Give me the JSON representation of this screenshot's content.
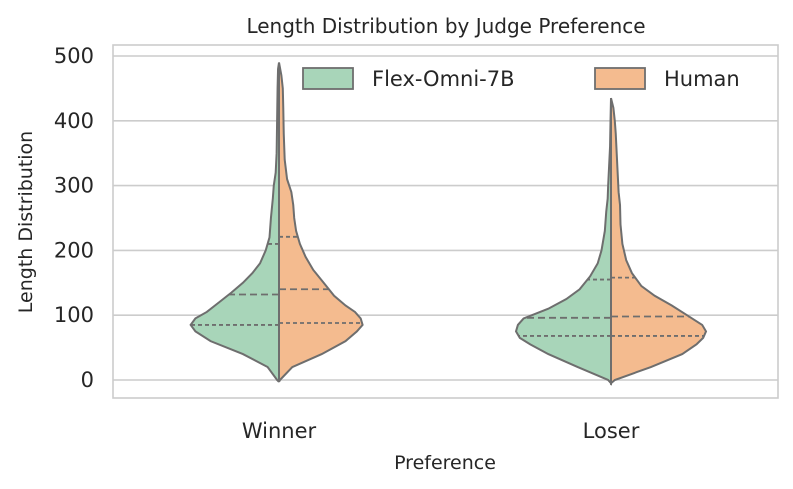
{
  "chart_data": {
    "type": "violin",
    "title": "Length Distribution by Judge Preference",
    "xlabel": "Preference",
    "ylabel": "Length Distribution",
    "categories": [
      "Winner",
      "Loser"
    ],
    "ylim": [
      -20,
      520
    ],
    "yticks": [
      0,
      100,
      200,
      300,
      400,
      500
    ],
    "grid": true,
    "split": true,
    "legend_position": "top-right",
    "series": [
      {
        "name": "Flex-Omni-7B",
        "color": "#a8d5b9",
        "violins": [
          {
            "category": "Winner",
            "quartiles": [
              85,
              132,
              210
            ],
            "profile": [
              [
                -3,
                0
              ],
              [
                0,
                0.02
              ],
              [
                20,
                0.12
              ],
              [
                40,
                0.38
              ],
              [
                60,
                0.72
              ],
              [
                75,
                0.88
              ],
              [
                85,
                0.93
              ],
              [
                95,
                0.88
              ],
              [
                105,
                0.76
              ],
              [
                120,
                0.63
              ],
              [
                135,
                0.5
              ],
              [
                150,
                0.38
              ],
              [
                165,
                0.28
              ],
              [
                180,
                0.2
              ],
              [
                200,
                0.14
              ],
              [
                220,
                0.1
              ],
              [
                250,
                0.085
              ],
              [
                280,
                0.065
              ],
              [
                300,
                0.055
              ],
              [
                320,
                0.035
              ],
              [
                350,
                0.025
              ],
              [
                400,
                0.02
              ],
              [
                450,
                0.015
              ],
              [
                480,
                0.01
              ],
              [
                490,
                0
              ]
            ]
          },
          {
            "category": "Loser",
            "quartiles": [
              68,
              96,
              155
            ],
            "profile": [
              [
                -5,
                0
              ],
              [
                0,
                0.03
              ],
              [
                20,
                0.35
              ],
              [
                40,
                0.66
              ],
              [
                55,
                0.85
              ],
              [
                65,
                0.96
              ],
              [
                75,
                1.0
              ],
              [
                85,
                0.98
              ],
              [
                95,
                0.92
              ],
              [
                110,
                0.66
              ],
              [
                125,
                0.47
              ],
              [
                140,
                0.33
              ],
              [
                160,
                0.22
              ],
              [
                180,
                0.14
              ],
              [
                200,
                0.1
              ],
              [
                230,
                0.065
              ],
              [
                260,
                0.05
              ],
              [
                280,
                0.035
              ],
              [
                300,
                0.03
              ],
              [
                330,
                0.02
              ],
              [
                360,
                0.01
              ],
              [
                400,
                0.005
              ],
              [
                435,
                0
              ]
            ]
          }
        ]
      },
      {
        "name": "Human",
        "color": "#f4bb8f",
        "violins": [
          {
            "category": "Winner",
            "quartiles": [
              88,
              140,
              221
            ],
            "profile": [
              [
                -3,
                0
              ],
              [
                0,
                0.01
              ],
              [
                20,
                0.14
              ],
              [
                40,
                0.45
              ],
              [
                60,
                0.7
              ],
              [
                75,
                0.82
              ],
              [
                85,
                0.88
              ],
              [
                95,
                0.86
              ],
              [
                105,
                0.8
              ],
              [
                115,
                0.7
              ],
              [
                130,
                0.58
              ],
              [
                150,
                0.47
              ],
              [
                170,
                0.36
              ],
              [
                190,
                0.28
              ],
              [
                210,
                0.22
              ],
              [
                230,
                0.18
              ],
              [
                250,
                0.16
              ],
              [
                270,
                0.15
              ],
              [
                290,
                0.13
              ],
              [
                310,
                0.085
              ],
              [
                340,
                0.06
              ],
              [
                380,
                0.05
              ],
              [
                420,
                0.045
              ],
              [
                450,
                0.04
              ],
              [
                470,
                0.025
              ],
              [
                490,
                0
              ]
            ]
          },
          {
            "category": "Loser",
            "quartiles": [
              68,
              98,
              158
            ],
            "profile": [
              [
                -5,
                0
              ],
              [
                0,
                0.04
              ],
              [
                20,
                0.42
              ],
              [
                40,
                0.75
              ],
              [
                55,
                0.9
              ],
              [
                65,
                0.97
              ],
              [
                75,
                1.0
              ],
              [
                85,
                0.96
              ],
              [
                100,
                0.8
              ],
              [
                115,
                0.64
              ],
              [
                130,
                0.46
              ],
              [
                145,
                0.32
              ],
              [
                165,
                0.22
              ],
              [
                185,
                0.16
              ],
              [
                210,
                0.12
              ],
              [
                240,
                0.1
              ],
              [
                270,
                0.095
              ],
              [
                290,
                0.08
              ],
              [
                320,
                0.07
              ],
              [
                350,
                0.06
              ],
              [
                380,
                0.05
              ],
              [
                400,
                0.04
              ],
              [
                420,
                0.025
              ],
              [
                435,
                0
              ]
            ]
          }
        ]
      }
    ]
  }
}
